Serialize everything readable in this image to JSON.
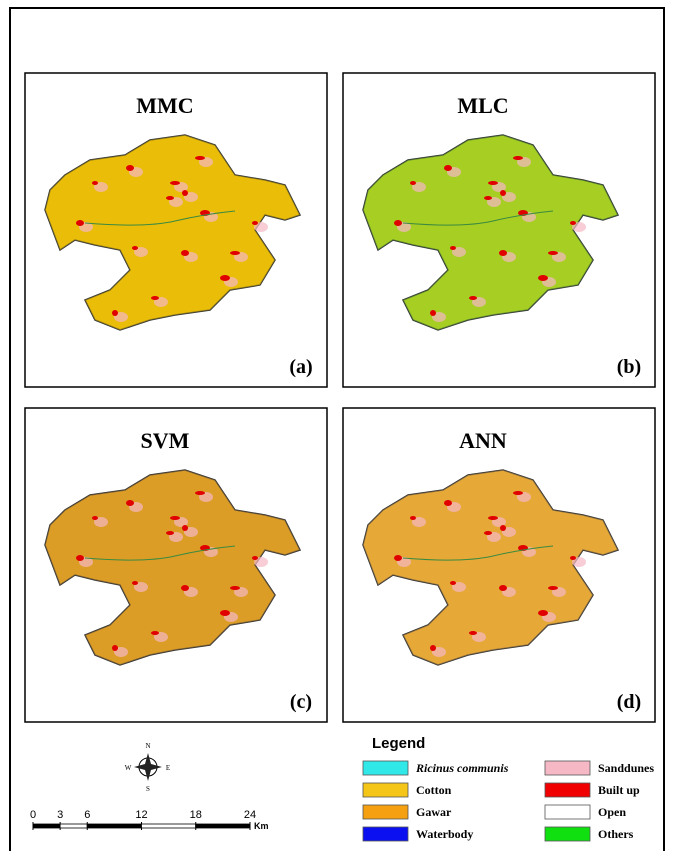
{
  "panels": [
    {
      "title": "MMC",
      "label": "(a)",
      "base": "#e6b410",
      "accent": "#f0c800"
    },
    {
      "title": "MLC",
      "label": "(b)",
      "base": "#c8c018",
      "accent": "#7ee030"
    },
    {
      "title": "SVM",
      "label": "(c)",
      "base": "#e0a020",
      "accent": "#d89a30"
    },
    {
      "title": "ANN",
      "label": "(d)",
      "base": "#e2a224",
      "accent": "#eab050"
    }
  ],
  "legend": {
    "title": "Legend",
    "items": [
      {
        "label": "Ricinus communis",
        "color": "#30e8e8"
      },
      {
        "label": "Cotton",
        "color": "#f5c518"
      },
      {
        "label": "Gawar",
        "color": "#f5a010"
      },
      {
        "label": "Waterbody",
        "color": "#0a10f0"
      },
      {
        "label": "Sanddunes",
        "color": "#f5b8c4"
      },
      {
        "label": "Built up",
        "color": "#f00000"
      },
      {
        "label": "Open",
        "color": "#ffffff"
      },
      {
        "label": "Others",
        "color": "#10e010"
      }
    ]
  },
  "scale_bar": {
    "ticks": [
      0,
      3,
      6,
      12,
      18,
      24
    ],
    "unit": "Km"
  },
  "compass": {
    "n": "N",
    "s": "S",
    "e": "E",
    "w": "W"
  }
}
